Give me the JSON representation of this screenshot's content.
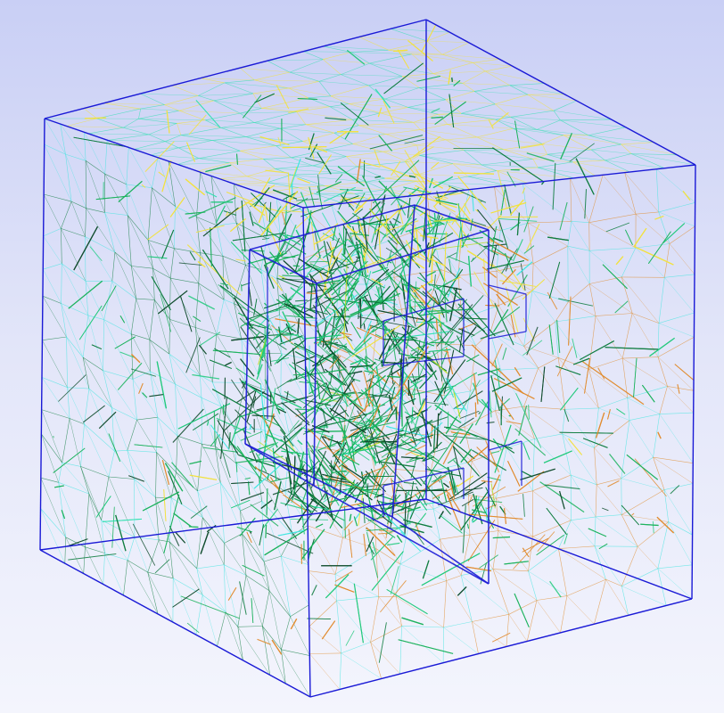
{
  "scene": {
    "background_top": "#c9cff5",
    "background_bottom": "#f4f5fd",
    "outer_box": {
      "edge_color": "#1a1ad6",
      "description_icon": "cube-wireframe"
    },
    "inner_block": {
      "edge_color": "#1a1ad6"
    },
    "mesh_colors": [
      "#0a7a3c",
      "#19b25a",
      "#1ec97a",
      "#2fe0b0",
      "#3de6e0",
      "#b8e02a",
      "#f2e23a",
      "#e08a2a",
      "#0d4a2a"
    ],
    "pattern": "tetrahedral-mesh-wireframe"
  }
}
